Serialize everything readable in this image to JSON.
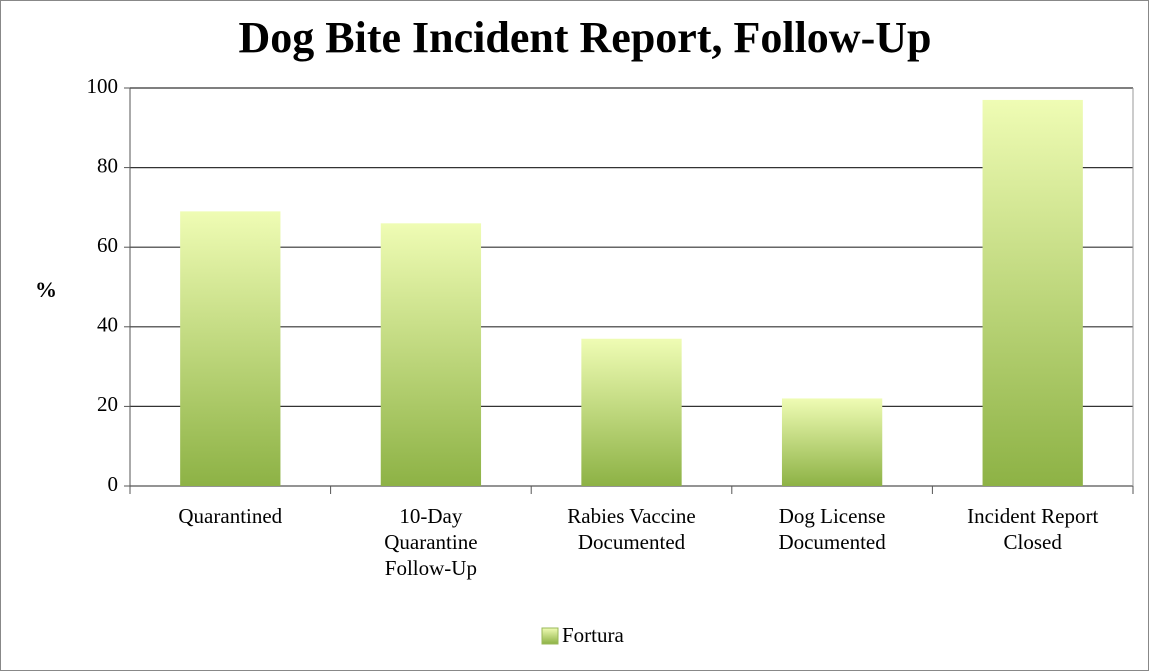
{
  "chart_data": {
    "type": "bar",
    "title": "Dog Bite Incident Report, Follow-Up",
    "y_label": "%",
    "categories": [
      "Quarantined",
      "10-Day Quarantine Follow-Up",
      "Rabies Vaccine Documented",
      "Dog License Documented",
      "Incident Report Closed"
    ],
    "series": [
      {
        "name": "Fortura",
        "color": "#8db245",
        "values": [
          69,
          66,
          37,
          22,
          97
        ]
      }
    ],
    "ylim": [
      0,
      100
    ],
    "yticks": [
      0,
      20,
      40,
      60,
      80,
      100
    ],
    "grid": true,
    "legend": "bottom"
  }
}
